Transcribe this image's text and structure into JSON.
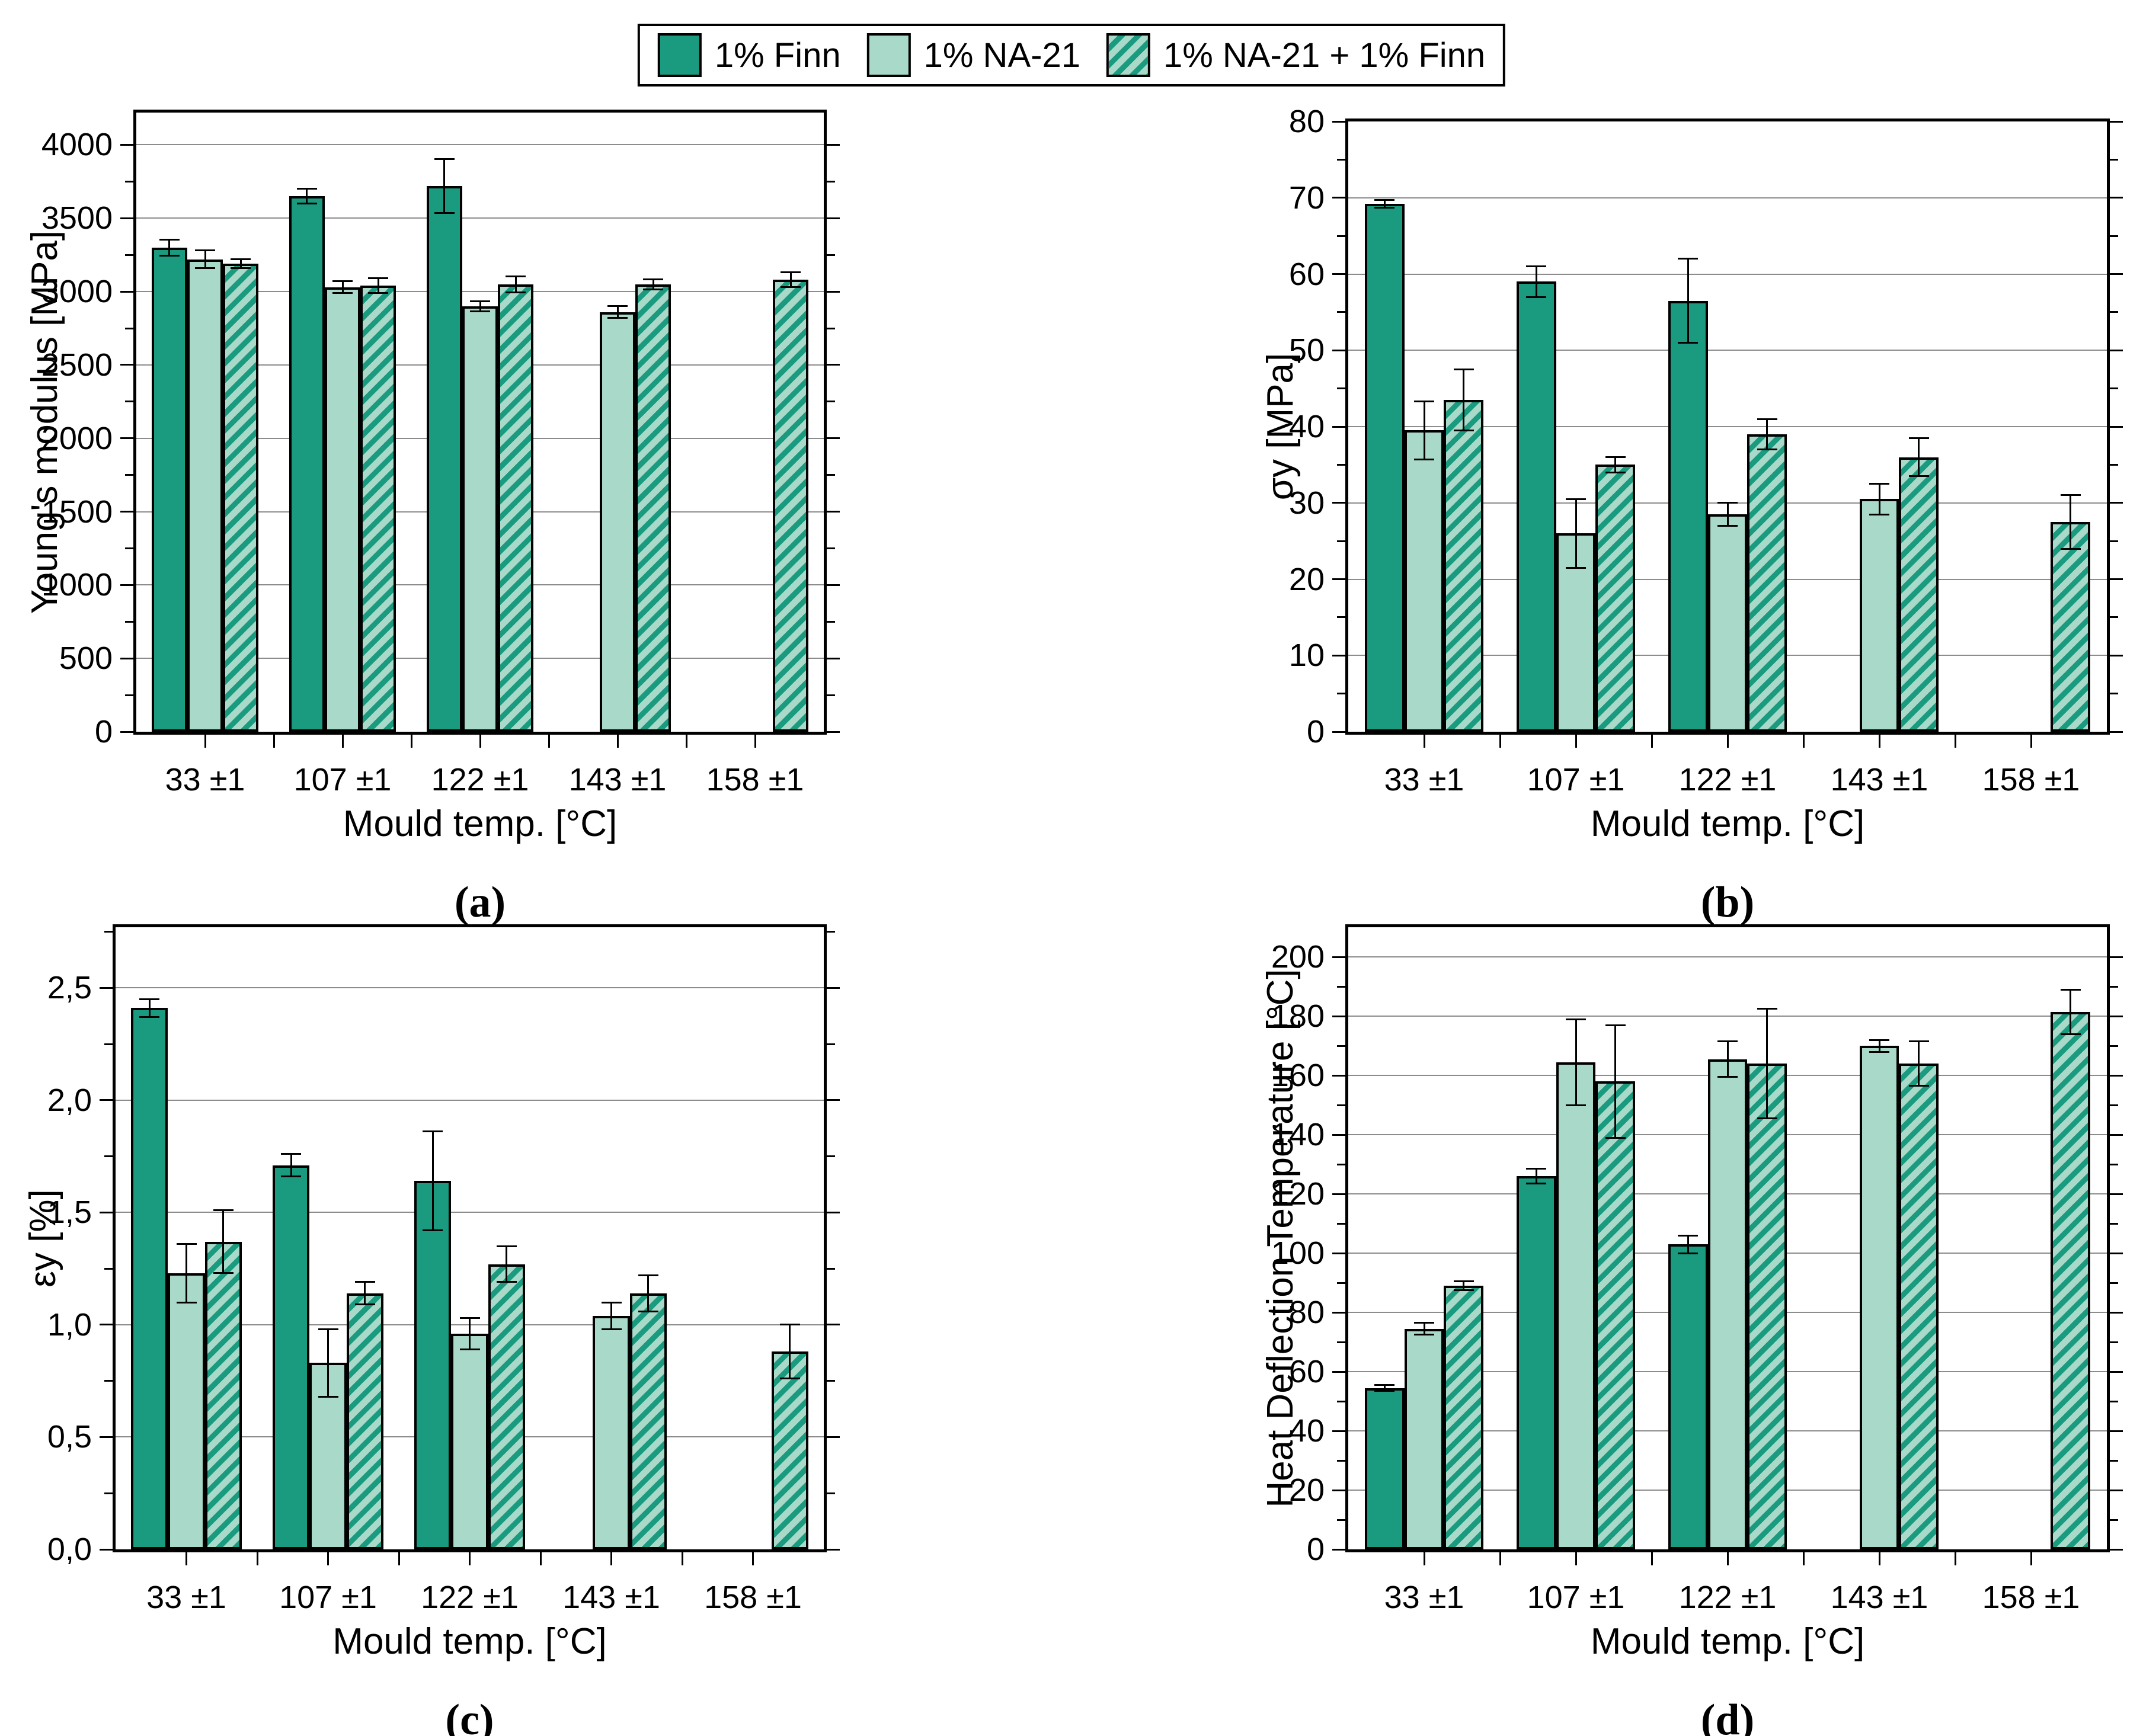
{
  "colors": {
    "finn_dark": "#1A9A7F",
    "na21_light": "#A9D9C9",
    "outline": "#000000",
    "gridline": "#8C8C8C"
  },
  "legend": {
    "position": "top-center",
    "items": [
      {
        "label": "1% Finn",
        "style": "solid-dark"
      },
      {
        "label": "1% NA-21",
        "style": "solid-light"
      },
      {
        "label": "1% NA-21 + 1% Finn",
        "style": "hatched"
      }
    ]
  },
  "chart_data": [
    {
      "type": "bar",
      "caption": "(a)",
      "xlabel": "Mould temp. [°C]",
      "ylabel": "Young's modulus [MPa]",
      "categories": [
        "33 ±1",
        "107 ±1",
        "122 ±1",
        "143 ±1",
        "158 ±1"
      ],
      "series": [
        {
          "name": "1% Finn",
          "style": "solid-dark",
          "values": [
            3300,
            3650,
            3720,
            null,
            null
          ],
          "errors": [
            55,
            50,
            185,
            null,
            null
          ]
        },
        {
          "name": "1% NA-21",
          "style": "solid-light",
          "values": [
            3220,
            3030,
            2900,
            2860,
            null
          ],
          "errors": [
            60,
            40,
            35,
            40,
            null
          ]
        },
        {
          "name": "1% NA-21 + 1% Finn",
          "style": "hatched",
          "values": [
            3190,
            3040,
            3050,
            3050,
            3080
          ],
          "errors": [
            30,
            50,
            55,
            35,
            50
          ]
        }
      ],
      "ylim": [
        0,
        4220
      ],
      "ytick_step": 500,
      "yminor_step": 250,
      "ytick_format": "int",
      "grid": true
    },
    {
      "type": "bar",
      "caption": "(b)",
      "xlabel": "Mould temp. [°C]",
      "ylabel": "σy [MPa]",
      "categories": [
        "33 ±1",
        "107 ±1",
        "122 ±1",
        "143 ±1",
        "158 ±1"
      ],
      "series": [
        {
          "name": "1% Finn",
          "style": "solid-dark",
          "values": [
            69.2,
            59,
            56.5,
            null,
            null
          ],
          "errors": [
            0.5,
            2,
            5.5,
            null,
            null
          ]
        },
        {
          "name": "1% NA-21",
          "style": "solid-light",
          "values": [
            39.5,
            26,
            28.5,
            30.5,
            null
          ],
          "errors": [
            3.8,
            4.5,
            1.5,
            2,
            null
          ]
        },
        {
          "name": "1% NA-21 + 1% Finn",
          "style": "hatched",
          "values": [
            43.5,
            35,
            39,
            36,
            27.5
          ],
          "errors": [
            4,
            1,
            2,
            2.5,
            3.5
          ]
        }
      ],
      "ylim": [
        0,
        80
      ],
      "ytick_step": 10,
      "yminor_step": 5,
      "ytick_format": "int",
      "grid": true
    },
    {
      "type": "bar",
      "caption": "(c)",
      "xlabel": "Mould temp. [°C]",
      "ylabel": "εy [%]",
      "categories": [
        "33 ±1",
        "107 ±1",
        "122 ±1",
        "143 ±1",
        "158 ±1"
      ],
      "series": [
        {
          "name": "1% Finn",
          "style": "solid-dark",
          "values": [
            2.41,
            1.71,
            1.64,
            null,
            null
          ],
          "errors": [
            0.04,
            0.05,
            0.22,
            null,
            null
          ]
        },
        {
          "name": "1% NA-21",
          "style": "solid-light",
          "values": [
            1.23,
            0.83,
            0.96,
            1.04,
            null
          ],
          "errors": [
            0.13,
            0.15,
            0.07,
            0.06,
            null
          ]
        },
        {
          "name": "1% NA-21 + 1% Finn",
          "style": "hatched",
          "values": [
            1.37,
            1.14,
            1.27,
            1.14,
            0.88
          ],
          "errors": [
            0.14,
            0.05,
            0.08,
            0.08,
            0.12
          ]
        }
      ],
      "ylim": [
        0,
        2.77
      ],
      "ytick_step": 0.5,
      "yminor_step": 0.25,
      "ytick_format": "comma1",
      "grid": true
    },
    {
      "type": "bar",
      "caption": "(d)",
      "xlabel": "Mould temp. [°C]",
      "ylabel": "Heat Deflection Temperature [°C]",
      "categories": [
        "33 ±1",
        "107 ±1",
        "122 ±1",
        "143 ±1",
        "158 ±1"
      ],
      "series": [
        {
          "name": "1% Finn",
          "style": "solid-dark",
          "values": [
            54.5,
            126,
            103,
            null,
            null
          ],
          "errors": [
            1,
            2.5,
            3,
            null,
            null
          ]
        },
        {
          "name": "1% NA-21",
          "style": "solid-light",
          "values": [
            74.5,
            164.5,
            165.5,
            170,
            null
          ],
          "errors": [
            2,
            14.5,
            6,
            2,
            null
          ]
        },
        {
          "name": "1% NA-21 + 1% Finn",
          "style": "hatched",
          "values": [
            89,
            158,
            164,
            164,
            181.5
          ],
          "errors": [
            1.5,
            19,
            18.5,
            7.5,
            7.5
          ]
        }
      ],
      "ylim": [
        0,
        210
      ],
      "ytick_step": 20,
      "yminor_step": 10,
      "ytick_format": "int",
      "grid": true
    }
  ]
}
